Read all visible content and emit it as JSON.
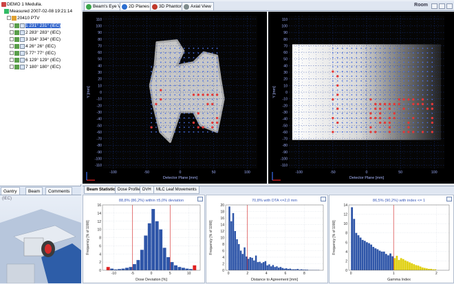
{
  "tree": {
    "patient": "DEMO 1  Medulla.",
    "measured": "Measured  2007-02-08 19:21:14",
    "plan": "20410 PTV",
    "beams": [
      {
        "label": "1 231°  231° (IEC)",
        "selected": true
      },
      {
        "label": "2 283°  283° (IEC)",
        "selected": false
      },
      {
        "label": "3 334°  334° (IEC)",
        "selected": false
      },
      {
        "label": "4 26°  26° (IEC)",
        "selected": false
      },
      {
        "label": "5 77°  77° (IEC)",
        "selected": false
      },
      {
        "label": "6 129°  129° (IEC)",
        "selected": false
      },
      {
        "label": "7 180°  180° (IEC)",
        "selected": false
      }
    ]
  },
  "left_tabs": [
    "Gantry",
    "Beam",
    "Comments"
  ],
  "left_view_label": "(IEC)",
  "top_tabs": [
    {
      "label": "Beam's Eye View",
      "icon": "eye-icon",
      "color": "#3aa64a",
      "active": false
    },
    {
      "label": "2D Planes",
      "icon": "planes-icon",
      "color": "#2c6fd1",
      "active": true
    },
    {
      "label": "3D Phantom",
      "icon": "phantom-icon",
      "color": "#c0392b",
      "active": false
    },
    {
      "label": "Axial View",
      "icon": "axial-icon",
      "color": "#7f8c8d",
      "active": false
    }
  ],
  "room_label": "Room",
  "views": [
    {
      "ylabel": "Y [mm]",
      "xlabel": "Detector Plane [mm]",
      "yticks": [
        "110",
        "100",
        "90",
        "80",
        "70",
        "60",
        "50",
        "40",
        "30",
        "20",
        "10",
        "0",
        "-10",
        "-20",
        "-30",
        "-40",
        "-50",
        "-60",
        "-70",
        "-80",
        "-90",
        "-100",
        "-110"
      ],
      "xticks": [
        "-100",
        "-50",
        "0",
        "50",
        "100"
      ]
    },
    {
      "ylabel": "Y [mm]",
      "xlabel": "Detector Plane [mm]",
      "yticks": [
        "110",
        "100",
        "90",
        "80",
        "70",
        "60",
        "50",
        "40",
        "30",
        "20",
        "10",
        "0",
        "-10",
        "-20",
        "-30",
        "-40",
        "-50",
        "-60",
        "-70",
        "-80",
        "-90",
        "-100",
        "-110"
      ],
      "xticks": [
        "-100",
        "-50",
        "0",
        "50",
        "100"
      ]
    }
  ],
  "bottom_tabs": [
    {
      "label": "Beam Statistics",
      "active": true
    },
    {
      "label": "Dose Profiles",
      "active": false
    },
    {
      "label": "DVH",
      "active": false
    },
    {
      "label": "MLC Leaf Movements",
      "active": false
    }
  ],
  "chart_data": [
    {
      "type": "bar",
      "title": "88,8% (86,2%) within ±5,0% deviation",
      "xlabel": "Dose Deviation [%]",
      "ylabel": "Frequency [% of 1000]",
      "xlim": [
        -13,
        13
      ],
      "ylim": [
        0,
        16
      ],
      "yticks": [
        0,
        2,
        4,
        6,
        8,
        10,
        12,
        14,
        16
      ],
      "xticks": [
        -10,
        -5,
        0,
        5,
        10
      ],
      "threshold_lines": [
        -5,
        5
      ],
      "colors": {
        "primary": "#2e55a8",
        "highlight": "#e02020",
        "threshold": "#d83a3a"
      },
      "x": [
        -12.5,
        -11.5,
        -10.5,
        -9.5,
        -8.5,
        -7.5,
        -6.5,
        -5.5,
        -4.5,
        -3.5,
        -2.5,
        -1.5,
        -0.5,
        0.5,
        1.5,
        2.5,
        3.5,
        4.5,
        5.5,
        6.5,
        7.5,
        8.5,
        9.5,
        10.5,
        11.5
      ],
      "values": [
        0,
        0.8,
        0.4,
        0.2,
        0.3,
        0.4,
        0.6,
        0.8,
        1.5,
        2.5,
        5,
        8.5,
        11.5,
        15,
        12,
        10,
        5.5,
        3.2,
        2.0,
        1.2,
        0.8,
        0.6,
        0.4,
        0.3,
        1.2
      ],
      "highlight": [
        false,
        true,
        false,
        false,
        false,
        false,
        false,
        false,
        false,
        false,
        false,
        false,
        false,
        false,
        false,
        false,
        false,
        false,
        false,
        false,
        false,
        false,
        false,
        false,
        true
      ]
    },
    {
      "type": "bar",
      "title": "70,8% with DTA <=2,0 mm",
      "xlabel": "Distance to Agreement [mm]",
      "ylabel": "Frequency [% of 1000]",
      "xlim": [
        -0.3,
        10
      ],
      "ylim": [
        0,
        20
      ],
      "yticks": [
        0,
        2,
        4,
        6,
        8,
        10,
        12,
        14,
        16,
        18,
        20
      ],
      "xticks": [
        0,
        2,
        4,
        6,
        8
      ],
      "threshold_lines": [
        2
      ],
      "colors": {
        "primary": "#2e55a8",
        "highlight": "#e02020",
        "threshold": "#d83a3a"
      },
      "x": [
        0.1,
        0.3,
        0.5,
        0.7,
        0.9,
        1.1,
        1.3,
        1.5,
        1.7,
        1.9,
        2.1,
        2.3,
        2.5,
        2.7,
        2.9,
        3.1,
        3.3,
        3.5,
        3.7,
        3.9,
        4.1,
        4.3,
        4.5,
        4.7,
        4.9,
        5.1,
        5.3,
        5.5,
        5.7,
        5.9,
        6.1,
        6.3,
        6.5,
        6.7,
        6.9,
        7.1,
        7.3,
        7.5,
        7.7,
        7.9,
        8.1,
        8.3,
        8.5,
        8.7,
        8.9,
        9.1,
        9.3,
        9.5
      ],
      "values": [
        19.5,
        15,
        17.5,
        12,
        9.5,
        8,
        6,
        5,
        7,
        4.2,
        3.5,
        4,
        3.8,
        3,
        4.5,
        2.5,
        2.6,
        2.2,
        2.5,
        2.8,
        1.5,
        1.8,
        1.2,
        1.6,
        1,
        1.2,
        0.8,
        1,
        0.7,
        0.5,
        0.6,
        0.4,
        0.5,
        0.3,
        0.3,
        0.3,
        0.4,
        0.2,
        0.3,
        0.2,
        0.2,
        0.2,
        0.1,
        0.1,
        0.1,
        0.1,
        0.1,
        0.1
      ],
      "highlight": []
    },
    {
      "type": "bar",
      "title": "86,5% (90,2%) with index <= 1",
      "xlabel": "Gamma Index",
      "ylabel": "Frequency [% of 1000]",
      "xlim": [
        -0.05,
        2.3
      ],
      "ylim": [
        0,
        14
      ],
      "yticks": [
        0,
        2,
        4,
        6,
        8,
        10,
        12,
        14
      ],
      "xticks": [
        0,
        1,
        2
      ],
      "threshold_lines": [
        1
      ],
      "colors": {
        "primary": "#2e55a8",
        "highlight": "#e0d010",
        "threshold": "#d83a3a"
      },
      "x": [
        0.025,
        0.075,
        0.125,
        0.175,
        0.225,
        0.275,
        0.325,
        0.375,
        0.425,
        0.475,
        0.525,
        0.575,
        0.625,
        0.675,
        0.725,
        0.775,
        0.825,
        0.875,
        0.925,
        0.975,
        1.025,
        1.075,
        1.125,
        1.175,
        1.225,
        1.275,
        1.325,
        1.375,
        1.425,
        1.475,
        1.525,
        1.575,
        1.625,
        1.675,
        1.725,
        1.775,
        1.825,
        1.875,
        1.925,
        1.975
      ],
      "values": [
        13.5,
        11,
        8,
        7.5,
        7,
        6.5,
        6.3,
        6,
        5.8,
        5.5,
        5,
        4.7,
        4.5,
        4.2,
        4,
        4,
        3.5,
        3.2,
        3.6,
        3,
        2.6,
        3.1,
        2.2,
        2.6,
        2.4,
        2.1,
        1.9,
        1.7,
        1.5,
        1.3,
        1.1,
        1,
        0.8,
        0.6,
        0.5,
        0.4,
        0.3,
        0.3,
        0.2,
        0.2
      ],
      "highlight_from": 1.0
    }
  ]
}
